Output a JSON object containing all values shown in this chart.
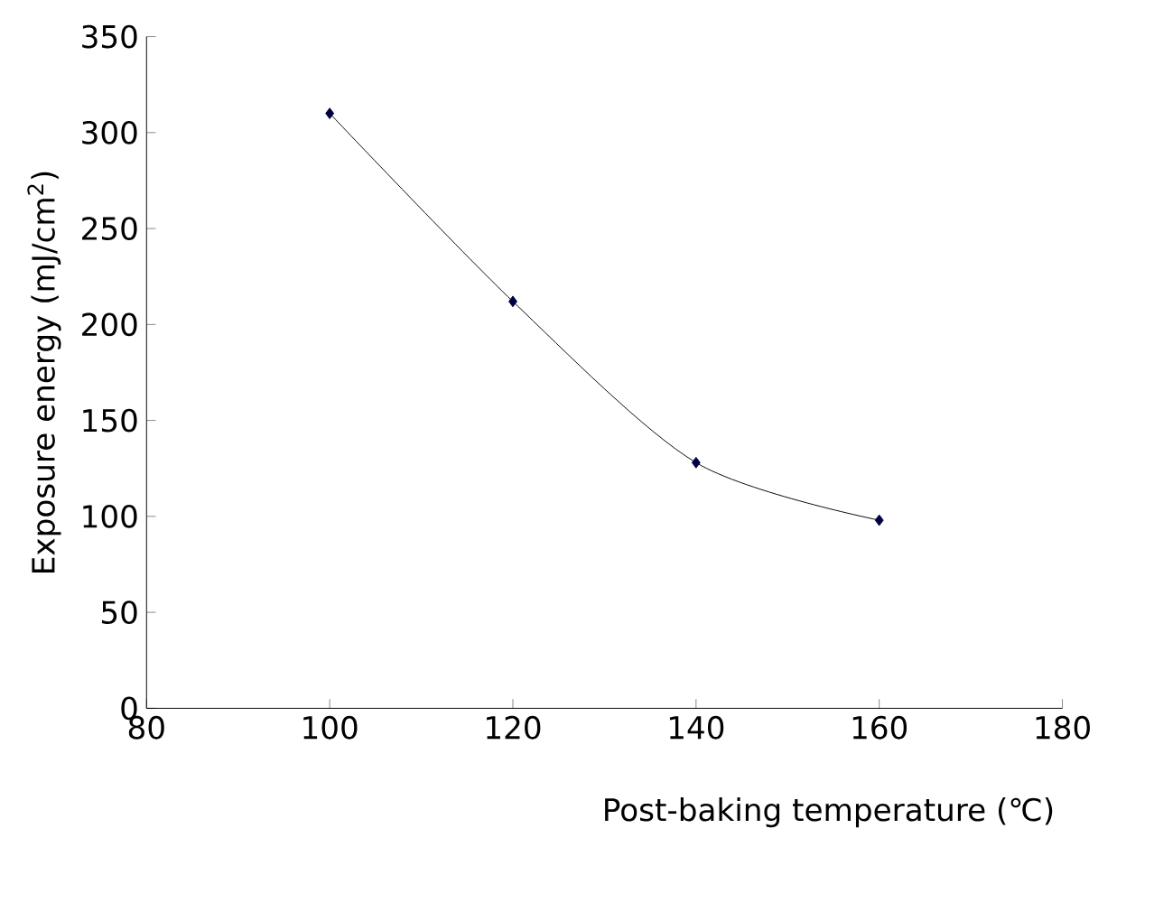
{
  "chart_data": {
    "type": "line",
    "xlabel": "Post-baking temperature (℃)",
    "ylabel": "Exposure energy (mJ/cm$^{2}$)",
    "x": [
      100,
      120,
      140,
      160
    ],
    "series": [
      {
        "color": "#000040",
        "values": [
          310,
          212,
          128,
          98
        ]
      }
    ],
    "xlim": [
      80,
      180
    ],
    "xticks": [
      80,
      100,
      120,
      140,
      160,
      180
    ],
    "ylim": [
      0,
      350
    ],
    "yticks": [
      0,
      50,
      100,
      150,
      200,
      250,
      300,
      350
    ],
    "marker": "diamond",
    "grid": false
  }
}
